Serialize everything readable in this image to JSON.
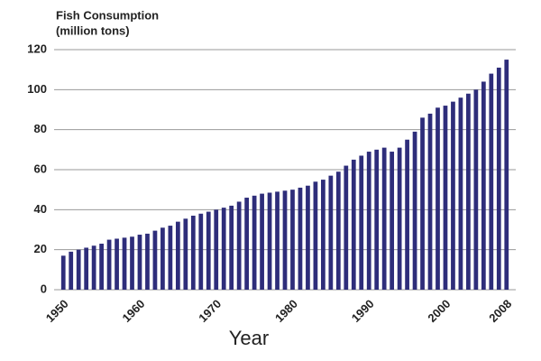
{
  "chart_data": {
    "type": "bar",
    "title": "Fish Consumption",
    "subtitle": "(million tons)",
    "xlabel": "Year",
    "categories": [
      "1950",
      null,
      null,
      null,
      null,
      null,
      null,
      null,
      null,
      null,
      "1960",
      null,
      null,
      null,
      null,
      null,
      null,
      null,
      null,
      null,
      "1970",
      null,
      null,
      null,
      null,
      null,
      null,
      null,
      null,
      null,
      "1980",
      null,
      null,
      null,
      null,
      null,
      null,
      null,
      null,
      null,
      "1990",
      null,
      null,
      null,
      null,
      null,
      null,
      null,
      null,
      null,
      "2000",
      null,
      null,
      null,
      null,
      null,
      null,
      null,
      "2008"
    ],
    "values": [
      17,
      19,
      20,
      21,
      22,
      23,
      25,
      25.5,
      26,
      26.5,
      27.5,
      28,
      29.5,
      31,
      32,
      34,
      35.5,
      37,
      38,
      39,
      40,
      41,
      42,
      44,
      46,
      47,
      48,
      48.5,
      49,
      49.5,
      50,
      51,
      52,
      54,
      55,
      57,
      59,
      62,
      65,
      67,
      69,
      70,
      71,
      69,
      71,
      75,
      79,
      86,
      88,
      91,
      92,
      94,
      96,
      98,
      100,
      104,
      108,
      111,
      115
    ],
    "color": "#2e2d7a",
    "ylim": [
      0,
      120
    ],
    "yticks": [
      0,
      20,
      40,
      60,
      80,
      100,
      120
    ],
    "grid": true
  }
}
